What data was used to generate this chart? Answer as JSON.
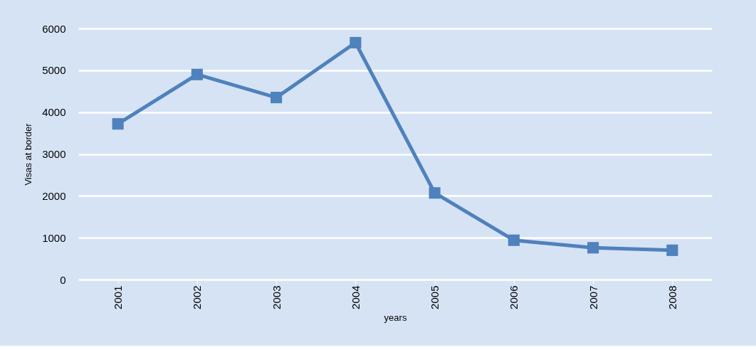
{
  "chart_data": {
    "type": "line",
    "xlabel": "years",
    "ylabel": "Visas at border",
    "categories": [
      "2001",
      "2002",
      "2003",
      "2004",
      "2005",
      "2006",
      "2007",
      "2008"
    ],
    "series": [
      {
        "color": "#4f81bd",
        "values": [
          3720,
          4900,
          4350,
          5660,
          2070,
          940,
          760,
          700
        ]
      }
    ],
    "ylim": [
      0,
      6000
    ],
    "yticks": [
      0,
      1000,
      2000,
      3000,
      4000,
      5000,
      6000
    ],
    "grid": "y",
    "legend": false,
    "marker": "square",
    "line_style": "solid"
  }
}
